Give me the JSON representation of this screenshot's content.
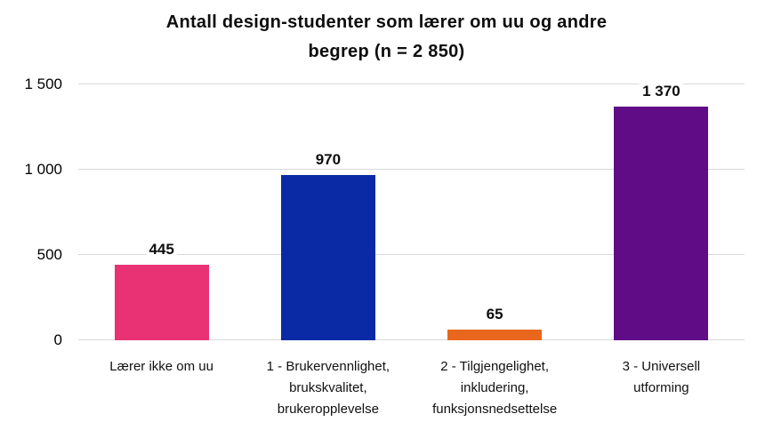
{
  "title": {
    "lines": [
      "Antall design-studenter som lærer om uu og andre",
      "begrep (n = 2 850)"
    ]
  },
  "chart_data": {
    "type": "bar",
    "title": "Antall design-studenter som lærer om uu og andre begrep (n = 2 850)",
    "categories": [
      "Lærer ikke om uu",
      "1 - Brukervennlighet, brukskvalitet, brukeropplevelse",
      "2 - Tilgjengelighet, inkludering, funksjonsnedsettelse",
      "3 - Universell utforming"
    ],
    "values": [
      445,
      970,
      65,
      1370
    ],
    "value_labels": [
      "445",
      "970",
      "65",
      "1 370"
    ],
    "colors": [
      "#e83273",
      "#0a2aa5",
      "#e8671c",
      "#610c87"
    ],
    "xlabel": "",
    "ylabel": "",
    "ylim": [
      0,
      1500
    ],
    "yticks": [
      {
        "value": 0,
        "label": "0"
      },
      {
        "value": 500,
        "label": "500"
      },
      {
        "value": 1000,
        "label": "1 000"
      },
      {
        "value": 1500,
        "label": "1 500"
      }
    ],
    "grid": true,
    "legend": "none",
    "background": "#ffffff"
  }
}
